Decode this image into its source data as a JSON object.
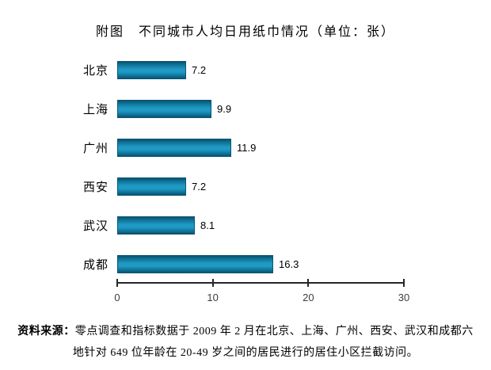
{
  "title": "附图　不同城市人均日用纸巾情况（单位：张）",
  "chart_data": {
    "type": "bar",
    "orientation": "horizontal",
    "title": "附图　不同城市人均日用纸巾情况（单位：张）",
    "unit": "张",
    "categories": [
      "北京",
      "上海",
      "广州",
      "西安",
      "武汉",
      "成都"
    ],
    "values": [
      7.2,
      9.9,
      11.9,
      7.2,
      8.1,
      16.3
    ],
    "value_labels": [
      "7.2",
      "9.9",
      "11.9",
      "7.2",
      "8.1",
      "16.3"
    ],
    "xlim": [
      0,
      30
    ],
    "x_ticks": [
      "0",
      "10",
      "20",
      "30"
    ],
    "grid": false,
    "legend": false,
    "colors": {
      "bar_mid": "#1F9AC5",
      "bar_edge": "#07546F",
      "axis": "#262626",
      "text": "#000000"
    }
  },
  "source_note": {
    "prefix": "资料来源：",
    "line1": "零点调查和指标数据于 2009 年 2 月在北京、上海、广州、西安、武汉和成都六",
    "line2": "地针对 649 位年龄在 20-49 岁之间的居民进行的居住小区拦截访问。"
  }
}
